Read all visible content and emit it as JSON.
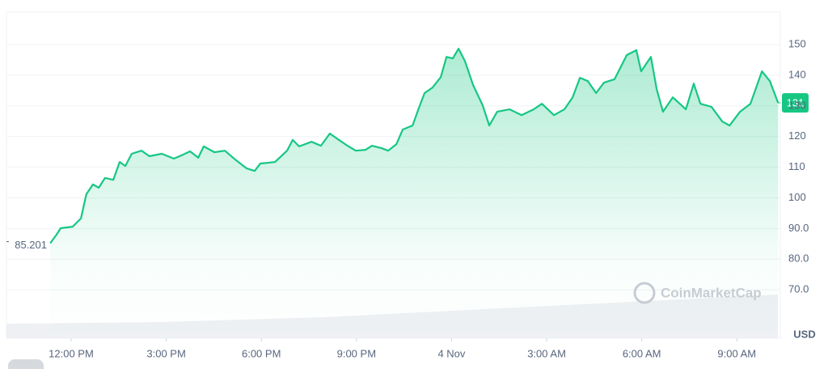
{
  "chart_data": {
    "type": "line",
    "color": "#16c784",
    "y_label": "USD",
    "watermark": "CoinMarketCap",
    "grid": true,
    "xlim": [
      -2.04,
      22.37
    ],
    "ylim": [
      54.2,
      160.6
    ],
    "xticks": [
      {
        "value": 0,
        "label": "12:00 PM"
      },
      {
        "value": 3,
        "label": "3:00 PM"
      },
      {
        "value": 6,
        "label": "6:00 PM"
      },
      {
        "value": 9,
        "label": "9:00 PM"
      },
      {
        "value": 12,
        "label": "4 Nov"
      },
      {
        "value": 15,
        "label": "3:00 AM"
      },
      {
        "value": 18,
        "label": "6:00 AM"
      },
      {
        "value": 21,
        "label": "9:00 AM"
      }
    ],
    "yticks": [
      150,
      140,
      130,
      120,
      110,
      100,
      {
        "value": 90,
        "label": "90.0"
      },
      {
        "value": 80,
        "label": "80.0"
      },
      {
        "value": 70,
        "label": "70.0"
      }
    ],
    "x": [
      -0.66,
      -0.46,
      -0.33,
      0.05,
      0.31,
      0.48,
      0.69,
      0.87,
      1.07,
      1.33,
      1.53,
      1.71,
      1.91,
      2.22,
      2.47,
      2.86,
      3.24,
      3.49,
      3.75,
      4.01,
      4.18,
      4.52,
      4.85,
      5.2,
      5.54,
      5.79,
      5.97,
      6.43,
      6.81,
      6.99,
      7.19,
      7.58,
      7.88,
      8.16,
      8.42,
      8.72,
      8.98,
      9.29,
      9.49,
      9.8,
      10.0,
      10.26,
      10.46,
      10.77,
      10.97,
      11.15,
      11.4,
      11.66,
      11.84,
      12.04,
      12.22,
      12.42,
      12.68,
      12.98,
      13.19,
      13.44,
      13.83,
      14.21,
      14.59,
      14.85,
      15.23,
      15.56,
      15.82,
      16.05,
      16.3,
      16.56,
      16.81,
      17.14,
      17.53,
      17.83,
      17.98,
      18.29,
      18.47,
      18.67,
      18.98,
      19.39,
      19.64,
      19.85,
      20.2,
      20.54,
      20.77,
      21.1,
      21.43,
      21.79,
      22.04,
      22.3
    ],
    "values": [
      85.201,
      88.0,
      90.1,
      90.6,
      93.3,
      101.2,
      104.4,
      103.3,
      106.5,
      105.9,
      111.7,
      110.4,
      114.4,
      115.4,
      113.6,
      114.4,
      112.8,
      113.9,
      115.2,
      113.1,
      116.8,
      114.9,
      115.4,
      112.3,
      109.6,
      108.8,
      111.2,
      111.7,
      115.4,
      118.9,
      116.8,
      118.3,
      117.0,
      121.0,
      119.1,
      117.0,
      115.4,
      115.7,
      117.0,
      116.2,
      115.4,
      117.5,
      122.3,
      123.6,
      129.4,
      134.2,
      136.0,
      139.4,
      146.0,
      145.5,
      148.7,
      144.7,
      136.8,
      130.2,
      123.6,
      128.1,
      128.9,
      127.0,
      128.9,
      130.7,
      127.0,
      128.9,
      132.8,
      139.2,
      138.1,
      134.2,
      137.6,
      138.7,
      146.6,
      148.2,
      141.3,
      146.0,
      135.5,
      128.1,
      132.8,
      128.9,
      137.3,
      130.7,
      129.7,
      124.9,
      123.6,
      128.1,
      130.7,
      141.3,
      138.1,
      131
    ]
  }
}
